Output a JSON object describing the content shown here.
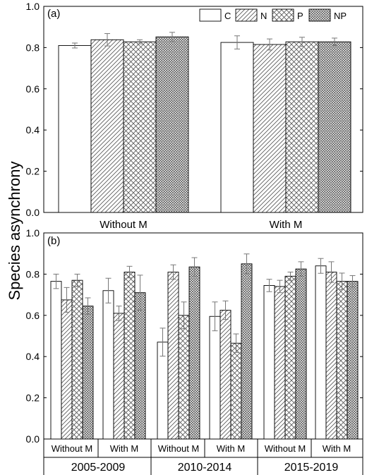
{
  "ylabel": "Species asynchrony",
  "legend": [
    {
      "key": "C",
      "label": "C",
      "pattern": "none"
    },
    {
      "key": "N",
      "label": "N",
      "pattern": "diag"
    },
    {
      "key": "P",
      "label": "P",
      "pattern": "cross"
    },
    {
      "key": "NP",
      "label": "NP",
      "pattern": "dense"
    }
  ],
  "chart_data": [
    {
      "panel": "(a)",
      "type": "bar",
      "ylim": [
        0.0,
        1.0
      ],
      "yticks": [
        "0.0",
        "0.2",
        "0.4",
        "0.6",
        "0.8",
        "1.0"
      ],
      "categories": [
        "Without M",
        "With M"
      ],
      "series": [
        {
          "name": "C",
          "values": [
            0.81,
            0.825
          ],
          "errors": [
            0.012,
            0.032
          ]
        },
        {
          "name": "N",
          "values": [
            0.838,
            0.815
          ],
          "errors": [
            0.03,
            0.027
          ]
        },
        {
          "name": "P",
          "values": [
            0.828,
            0.828
          ],
          "errors": [
            0.01,
            0.022
          ]
        },
        {
          "name": "NP",
          "values": [
            0.852,
            0.828
          ],
          "errors": [
            0.022,
            0.018
          ]
        }
      ]
    },
    {
      "panel": "(b)",
      "type": "bar",
      "ylim": [
        0.0,
        1.0
      ],
      "yticks": [
        "0.0",
        "0.2",
        "0.4",
        "0.6",
        "0.8",
        "1.0"
      ],
      "periods": [
        "2005-2009",
        "2010-2014",
        "2015-2019"
      ],
      "categories": [
        "Without M",
        "With M",
        "Without M",
        "With M",
        "Without M",
        "With M"
      ],
      "series": [
        {
          "name": "C",
          "values": [
            0.765,
            0.72,
            0.47,
            0.595,
            0.745,
            0.84
          ],
          "errors": [
            0.035,
            0.06,
            0.068,
            0.07,
            0.03,
            0.036
          ]
        },
        {
          "name": "N",
          "values": [
            0.675,
            0.61,
            0.81,
            0.625,
            0.74,
            0.81
          ],
          "errors": [
            0.06,
            0.035,
            0.035,
            0.045,
            0.03,
            0.05
          ]
        },
        {
          "name": "P",
          "values": [
            0.77,
            0.81,
            0.6,
            0.465,
            0.79,
            0.765
          ],
          "errors": [
            0.03,
            0.028,
            0.065,
            0.045,
            0.02,
            0.04
          ]
        },
        {
          "name": "NP",
          "values": [
            0.645,
            0.71,
            0.835,
            0.85,
            0.825,
            0.765
          ],
          "errors": [
            0.04,
            0.085,
            0.045,
            0.048,
            0.035,
            0.028
          ]
        }
      ]
    }
  ]
}
